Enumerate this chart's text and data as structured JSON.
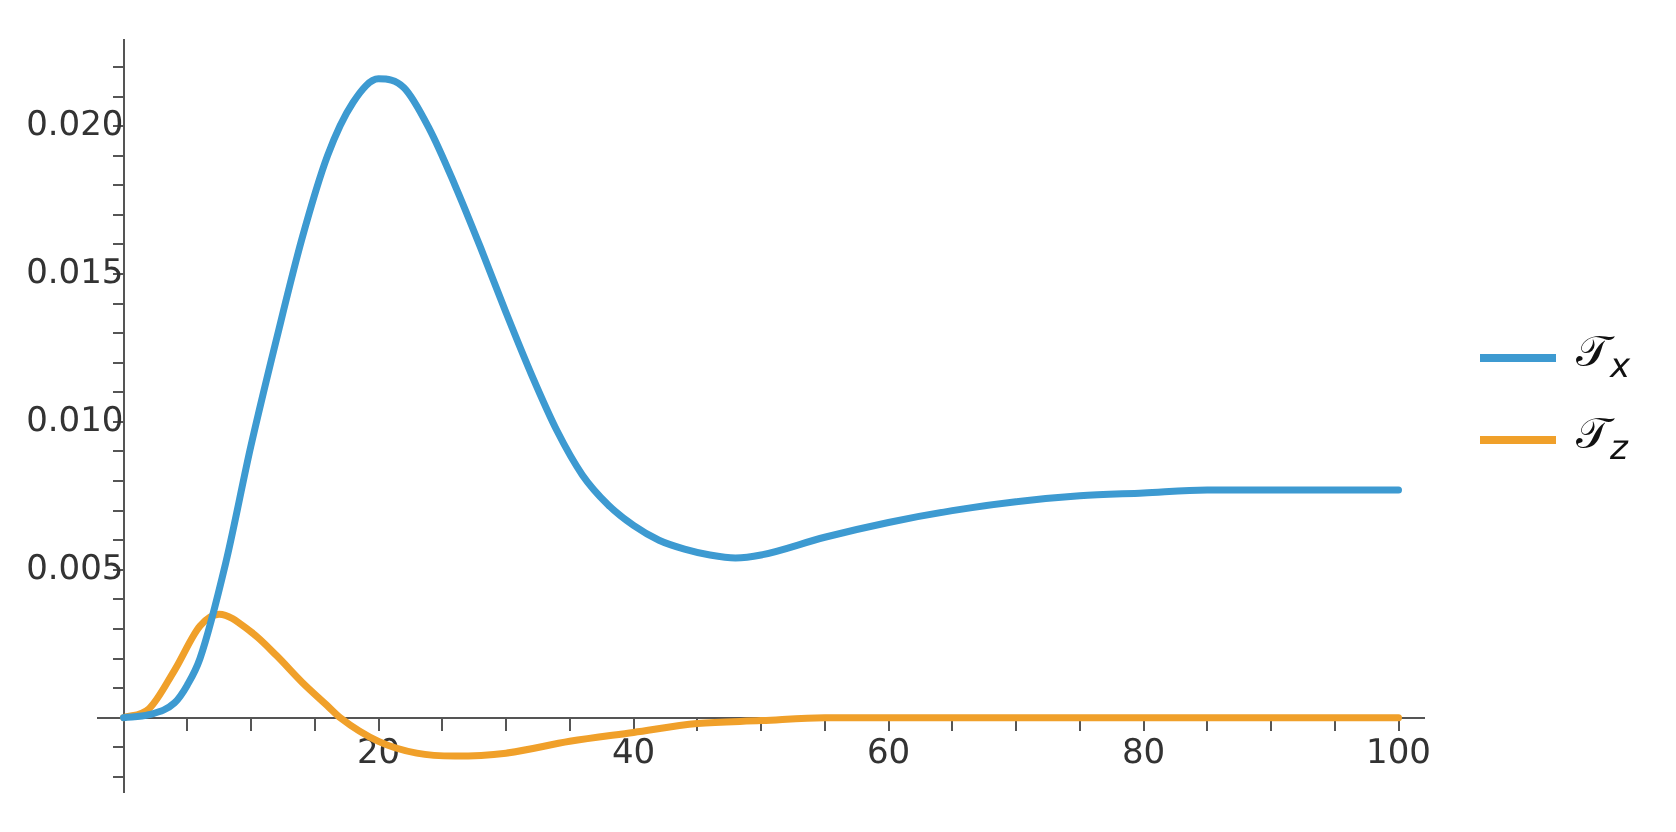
{
  "chart_data": {
    "type": "line",
    "xlim": [
      -2,
      102
    ],
    "ylim": [
      -0.0025,
      0.0229
    ],
    "xticks": [
      {
        "value": 5,
        "label": null
      },
      {
        "value": 10,
        "label": null
      },
      {
        "value": 15,
        "label": null
      },
      20,
      {
        "value": 25,
        "label": null
      },
      {
        "value": 30,
        "label": null
      },
      {
        "value": 35,
        "label": null
      },
      40,
      {
        "value": 45,
        "label": null
      },
      {
        "value": 50,
        "label": null
      },
      {
        "value": 55,
        "label": null
      },
      60,
      {
        "value": 65,
        "label": null
      },
      {
        "value": 70,
        "label": null
      },
      {
        "value": 75,
        "label": null
      },
      80,
      {
        "value": 85,
        "label": null
      },
      {
        "value": 90,
        "label": null
      },
      {
        "value": 95,
        "label": null
      },
      100
    ],
    "yticks": [
      {
        "value": -0.002,
        "label": null
      },
      {
        "value": -0.001,
        "label": null
      },
      {
        "value": 0.001,
        "label": null
      },
      {
        "value": 0.002,
        "label": null
      },
      {
        "value": 0.003,
        "label": null
      },
      {
        "value": 0.004,
        "label": null
      },
      0.005,
      {
        "value": 0.006,
        "label": null
      },
      {
        "value": 0.007,
        "label": null
      },
      {
        "value": 0.008,
        "label": null
      },
      {
        "value": 0.009,
        "label": null
      },
      {
        "value": 0.01,
        "label": "0.010"
      },
      {
        "value": 0.011,
        "label": null
      },
      {
        "value": 0.012,
        "label": null
      },
      {
        "value": 0.013,
        "label": null
      },
      {
        "value": 0.014,
        "label": null
      },
      0.015,
      {
        "value": 0.016,
        "label": null
      },
      {
        "value": 0.017,
        "label": null
      },
      {
        "value": 0.018,
        "label": null
      },
      {
        "value": 0.019,
        "label": null
      },
      {
        "value": 0.02,
        "label": "0.020"
      },
      {
        "value": 0.021,
        "label": null
      },
      {
        "value": 0.022,
        "label": null
      }
    ],
    "grid": false,
    "legend": "right",
    "marker": "none",
    "line_style": "solid",
    "series": [
      {
        "name": "𝒯$_{x}$",
        "color": "#3d9ad1",
        "x": [
          0,
          2,
          4,
          5,
          6,
          8,
          10,
          12,
          14,
          16,
          18,
          20,
          22,
          24,
          26,
          28,
          30,
          32,
          34,
          36,
          38,
          40,
          42,
          44,
          46,
          48,
          50,
          55,
          60,
          65,
          70,
          75,
          80,
          85,
          90,
          95,
          100
        ],
        "values": [
          0,
          0.0001,
          0.0005,
          0.0011,
          0.002,
          0.0052,
          0.0092,
          0.0128,
          0.0162,
          0.019,
          0.0208,
          0.0216,
          0.0213,
          0.0199,
          0.018,
          0.0159,
          0.0137,
          0.0116,
          0.0097,
          0.0082,
          0.0072,
          0.0065,
          0.006,
          0.0057,
          0.0055,
          0.0054,
          0.0055,
          0.0061,
          0.0066,
          0.007,
          0.0073,
          0.0075,
          0.0076,
          0.0077,
          0.0077,
          0.0077,
          0.0077
        ]
      },
      {
        "name": "𝒯$_{z}$",
        "color": "#f0a02a",
        "x": [
          0,
          2,
          4,
          6,
          7.5,
          10,
          12,
          14,
          16,
          17,
          20,
          23,
          26,
          30,
          35,
          40,
          45,
          50,
          55,
          60,
          70,
          80,
          90,
          100
        ],
        "values": [
          0,
          0.0003,
          0.0016,
          0.0031,
          0.0035,
          0.0029,
          0.0021,
          0.0012,
          0.0004,
          0,
          -0.0008,
          -0.0012,
          -0.0013,
          -0.0012,
          -0.0008,
          -0.0005,
          -0.0002,
          -0.0001,
          0,
          0,
          0,
          0,
          0,
          0
        ]
      }
    ]
  }
}
